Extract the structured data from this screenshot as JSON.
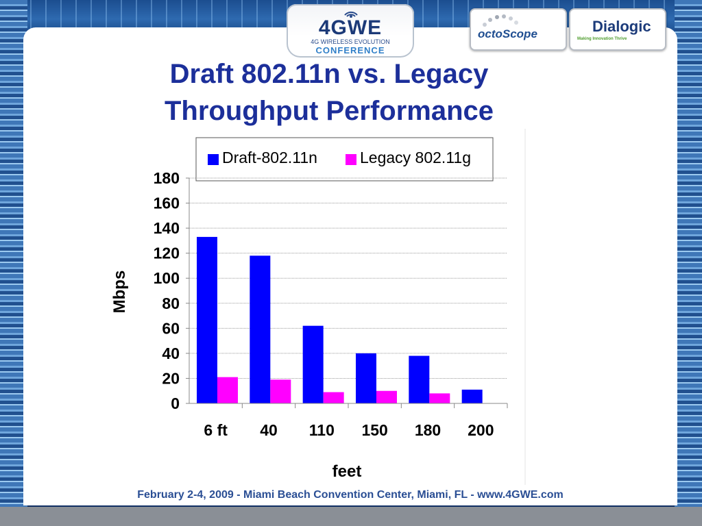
{
  "slide": {
    "title_line1": "Draft 802.11n vs. Legacy",
    "title_line2": "Throughput Performance",
    "footer": "February 2-4, 2009  -  Miami Beach Convention Center, Miami, FL  -  www.4GWE.com"
  },
  "logos": {
    "conference_main": "4GWE",
    "conference_sub": "4G WIRELESS EVOLUTION",
    "conference_word": "CONFERENCE",
    "octoscope": "octoScope",
    "dialogic": "Dialogic",
    "dialogic_tagline": "Making Innovation Thrive",
    "wave_icon": "wireless-waves-icon"
  },
  "colors": {
    "title": "#1c2f9a",
    "footer": "#2a4e94",
    "series_n": "#0000ff",
    "series_g": "#ff00ff"
  },
  "chart_data": {
    "type": "bar",
    "title": "",
    "xlabel": "feet",
    "ylabel": "Mbps",
    "categories": [
      "6 ft",
      "40",
      "110",
      "150",
      "180",
      "200"
    ],
    "series": [
      {
        "name": "Draft-802.11n",
        "color": "#0000ff",
        "values": [
          133,
          118,
          62,
          40,
          38,
          11
        ]
      },
      {
        "name": "Legacy  802.11g",
        "color": "#ff00ff",
        "values": [
          21,
          19,
          9,
          10,
          8,
          0
        ]
      }
    ],
    "ylim": [
      0,
      180
    ],
    "yticks": [
      0,
      20,
      40,
      60,
      80,
      100,
      120,
      140,
      160,
      180
    ],
    "grid": true,
    "legend": "top"
  }
}
